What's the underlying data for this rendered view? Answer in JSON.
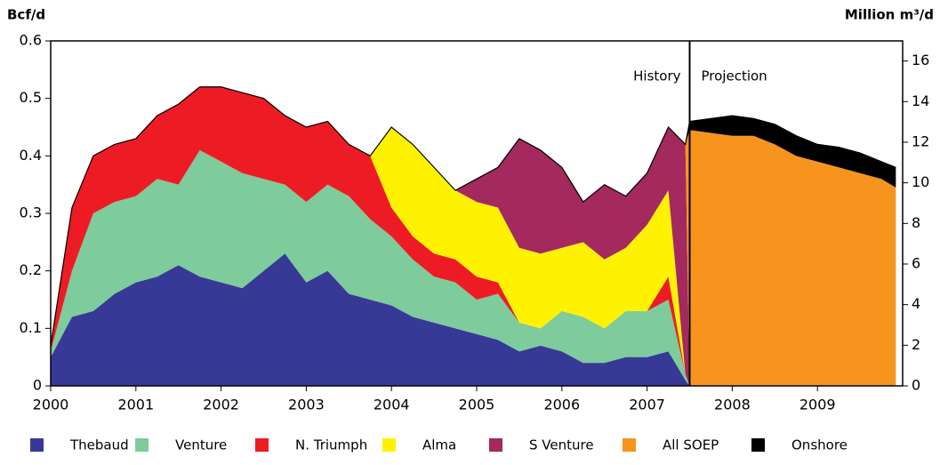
{
  "chart_data": {
    "type": "stacked-area",
    "y_label": "Bcf/d",
    "y2_label": "Million m³/d",
    "annotations": [
      {
        "text": "History"
      },
      {
        "text": "Projection"
      }
    ],
    "divider_x": 2007.5,
    "x": [
      2000,
      2000.25,
      2000.5,
      2000.75,
      2001,
      2001.25,
      2001.5,
      2001.75,
      2002,
      2002.25,
      2002.5,
      2002.75,
      2003,
      2003.25,
      2003.5,
      2003.75,
      2004,
      2004.25,
      2004.5,
      2004.75,
      2005,
      2005.25,
      2005.5,
      2005.75,
      2006,
      2006.25,
      2006.5,
      2006.75,
      2007,
      2007.25,
      2007.45,
      2007.5,
      2007.75,
      2008,
      2008.25,
      2008.5,
      2008.75,
      2009,
      2009.25,
      2009.5,
      2009.75,
      2009.92
    ],
    "series": [
      {
        "name": "Thebaud",
        "color": "#363a96",
        "values": [
          0.05,
          0.12,
          0.13,
          0.16,
          0.18,
          0.19,
          0.21,
          0.19,
          0.18,
          0.17,
          0.2,
          0.23,
          0.18,
          0.2,
          0.16,
          0.15,
          0.14,
          0.12,
          0.11,
          0.1,
          0.09,
          0.08,
          0.06,
          0.07,
          0.06,
          0.04,
          0.04,
          0.05,
          0.05,
          0.06,
          0.01,
          0,
          0,
          0,
          0,
          0,
          0,
          0,
          0,
          0,
          0,
          0
        ]
      },
      {
        "name": "Venture",
        "color": "#7ecb9c",
        "values": [
          0.01,
          0.08,
          0.17,
          0.16,
          0.15,
          0.17,
          0.14,
          0.22,
          0.21,
          0.2,
          0.16,
          0.12,
          0.14,
          0.15,
          0.17,
          0.14,
          0.12,
          0.1,
          0.08,
          0.08,
          0.06,
          0.08,
          0.05,
          0.03,
          0.07,
          0.08,
          0.06,
          0.08,
          0.08,
          0.09,
          0.01,
          0,
          0,
          0,
          0,
          0,
          0,
          0,
          0,
          0,
          0,
          0
        ]
      },
      {
        "name": "N. Triumph",
        "color": "#ed1c24",
        "values": [
          0.01,
          0.11,
          0.1,
          0.1,
          0.1,
          0.11,
          0.14,
          0.11,
          0.13,
          0.14,
          0.14,
          0.12,
          0.13,
          0.11,
          0.09,
          0.11,
          0.05,
          0.04,
          0.04,
          0.04,
          0.04,
          0.02,
          0,
          0,
          0,
          0,
          0,
          0,
          0,
          0.04,
          0,
          0,
          0,
          0,
          0,
          0,
          0,
          0,
          0,
          0,
          0,
          0
        ]
      },
      {
        "name": "Alma",
        "color": "#fff200",
        "values": [
          0,
          0,
          0,
          0,
          0,
          0,
          0,
          0,
          0,
          0,
          0,
          0,
          0,
          0,
          0,
          0,
          0.14,
          0.16,
          0.15,
          0.12,
          0.13,
          0.13,
          0.13,
          0.13,
          0.11,
          0.13,
          0.12,
          0.11,
          0.15,
          0.15,
          0,
          0,
          0,
          0,
          0,
          0,
          0,
          0,
          0,
          0,
          0,
          0
        ]
      },
      {
        "name": "S Venture",
        "color": "#a3295f",
        "values": [
          0,
          0,
          0,
          0,
          0,
          0,
          0,
          0,
          0,
          0,
          0,
          0,
          0,
          0,
          0,
          0,
          0,
          0,
          0,
          0,
          0.04,
          0.07,
          0.19,
          0.18,
          0.14,
          0.07,
          0.13,
          0.09,
          0.09,
          0.11,
          0.4,
          0,
          0,
          0,
          0,
          0,
          0,
          0,
          0,
          0,
          0,
          0
        ]
      },
      {
        "name": "All SOEP",
        "color": "#f7941d",
        "values": [
          0,
          0,
          0,
          0,
          0,
          0,
          0,
          0,
          0,
          0,
          0,
          0,
          0,
          0,
          0,
          0,
          0,
          0,
          0,
          0,
          0,
          0,
          0,
          0,
          0,
          0,
          0,
          0,
          0,
          0,
          0,
          0.445,
          0.44,
          0.435,
          0.435,
          0.42,
          0.4,
          0.39,
          0.38,
          0.37,
          0.36,
          0.345
        ]
      },
      {
        "name": "Onshore",
        "color": "#000000",
        "values": [
          0,
          0,
          0,
          0,
          0,
          0,
          0,
          0,
          0,
          0,
          0,
          0,
          0,
          0,
          0,
          0,
          0,
          0,
          0,
          0,
          0,
          0,
          0,
          0,
          0,
          0,
          0,
          0,
          0,
          0,
          0,
          0.015,
          0.025,
          0.035,
          0.03,
          0.035,
          0.035,
          0.03,
          0.035,
          0.035,
          0.03,
          0.035
        ]
      }
    ],
    "xlim": [
      2000,
      2010
    ],
    "xticks": [
      2000,
      2001,
      2002,
      2003,
      2004,
      2005,
      2006,
      2007,
      2008,
      2009
    ],
    "ylim": [
      0,
      0.6
    ],
    "yticks": [
      0,
      0.1,
      0.2,
      0.3,
      0.4,
      0.5,
      0.6
    ],
    "y2lim": [
      0,
      16.99
    ],
    "y2ticks": [
      0,
      2,
      4,
      6,
      8,
      10,
      12,
      14,
      16
    ],
    "legend": "bottom"
  }
}
